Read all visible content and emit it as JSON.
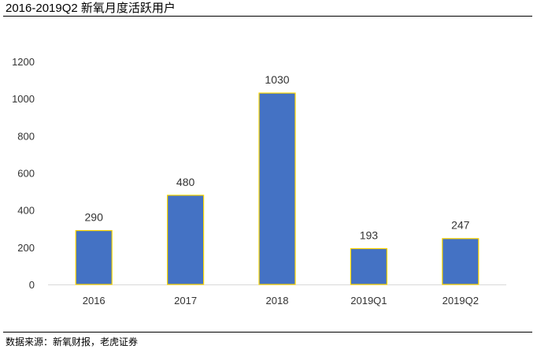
{
  "title": "2016-2019Q2 新氧月度活跃用户",
  "source": "数据来源：新氧财报，老虎证券",
  "colors": {
    "bar_fill": "#4472C4",
    "bar_border": "#FFD700",
    "axis": "#D9D9D9",
    "text": "#333333"
  },
  "chart_data": {
    "type": "bar",
    "categories": [
      "2016",
      "2017",
      "2018",
      "2019Q1",
      "2019Q2"
    ],
    "values": [
      290,
      480,
      1030,
      193,
      247
    ],
    "data_labels": [
      "290",
      "480",
      "1030",
      "193",
      "247"
    ],
    "ylim": [
      0,
      1200
    ],
    "yticks": [
      0,
      200,
      400,
      600,
      800,
      1000,
      1200
    ],
    "ytick_labels": [
      "0",
      "200",
      "400",
      "600",
      "800",
      "1000",
      "1200"
    ],
    "grid": false,
    "legend": "none"
  }
}
